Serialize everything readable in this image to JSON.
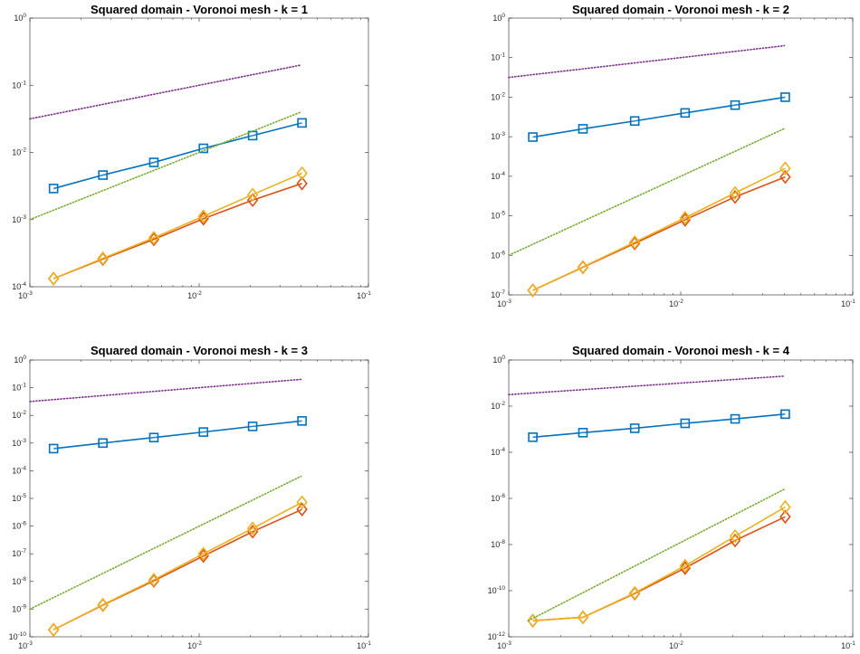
{
  "chart_data": [
    {
      "type": "line",
      "title": "Squared domain - Voronoi mesh - k = 1",
      "xscale": "log",
      "yscale": "log",
      "xlim": [
        0.001,
        0.1
      ],
      "ylim": [
        0.0001,
        1
      ],
      "xticks": [
        {
          "base": "10",
          "exp": "-3",
          "value": 0.001
        },
        {
          "base": "10",
          "exp": "-2",
          "value": 0.01
        },
        {
          "base": "10",
          "exp": "-1",
          "value": 0.1
        }
      ],
      "yticks": [
        {
          "base": "10",
          "exp": "-4",
          "value": 0.0001
        },
        {
          "base": "10",
          "exp": "-3",
          "value": 0.001
        },
        {
          "base": "10",
          "exp": "-2",
          "value": 0.01
        },
        {
          "base": "10",
          "exp": "-1",
          "value": 0.1
        },
        {
          "base": "10",
          "exp": "0",
          "value": 1
        }
      ],
      "grid": false,
      "series": [
        {
          "color": "#0072BD",
          "marker": "square",
          "style": "solid",
          "x": [
            0.00138,
            0.0027,
            0.0054,
            0.0106,
            0.0207,
            0.0405
          ],
          "y": [
            0.0029,
            0.0046,
            0.0071,
            0.0115,
            0.0178,
            0.0275
          ]
        },
        {
          "color": "#D95319",
          "marker": "diamond",
          "style": "solid",
          "x": [
            0.00138,
            0.0027,
            0.0054,
            0.0106,
            0.0207,
            0.0405
          ],
          "y": [
            0.000132,
            0.000258,
            0.000507,
            0.00103,
            0.00195,
            0.00345
          ]
        },
        {
          "color": "#EDB120",
          "marker": "diamond",
          "style": "solid",
          "x": [
            0.00138,
            0.0027,
            0.0054,
            0.0106,
            0.0207,
            0.0405
          ],
          "y": [
            0.000132,
            0.000265,
            0.000535,
            0.00112,
            0.00235,
            0.0049
          ]
        },
        {
          "color": "#7E2F8E",
          "marker": "none",
          "style": "dotted",
          "x": [
            0.001,
            0.04
          ],
          "y": [
            0.0316,
            0.2
          ]
        },
        {
          "color": "#77AC30",
          "marker": "none",
          "style": "dotted",
          "x": [
            0.001,
            0.04
          ],
          "y": [
            0.001,
            0.04
          ]
        }
      ]
    },
    {
      "type": "line",
      "title": "Squared domain - Voronoi mesh - k = 2",
      "xscale": "log",
      "yscale": "log",
      "xlim": [
        0.001,
        0.1
      ],
      "ylim": [
        1e-07,
        1
      ],
      "xticks": [
        {
          "base": "10",
          "exp": "-3",
          "value": 0.001
        },
        {
          "base": "10",
          "exp": "-2",
          "value": 0.01
        },
        {
          "base": "10",
          "exp": "-1",
          "value": 0.1
        }
      ],
      "yticks": [
        {
          "base": "10",
          "exp": "-7",
          "value": 1e-07
        },
        {
          "base": "10",
          "exp": "-6",
          "value": 1e-06
        },
        {
          "base": "10",
          "exp": "-5",
          "value": 1e-05
        },
        {
          "base": "10",
          "exp": "-4",
          "value": 0.0001
        },
        {
          "base": "10",
          "exp": "-3",
          "value": 0.001
        },
        {
          "base": "10",
          "exp": "-2",
          "value": 0.01
        },
        {
          "base": "10",
          "exp": "-1",
          "value": 0.1
        },
        {
          "base": "10",
          "exp": "0",
          "value": 1
        }
      ],
      "grid": false,
      "series": [
        {
          "color": "#0072BD",
          "marker": "square",
          "style": "solid",
          "x": [
            0.00138,
            0.0027,
            0.0054,
            0.0106,
            0.0207,
            0.0405
          ],
          "y": [
            0.00098,
            0.00158,
            0.0025,
            0.004,
            0.0063,
            0.01
          ]
        },
        {
          "color": "#D95319",
          "marker": "diamond",
          "style": "solid",
          "x": [
            0.00138,
            0.0027,
            0.0054,
            0.0106,
            0.0207,
            0.0405
          ],
          "y": [
            1.3e-07,
            5e-07,
            2e-06,
            7.9e-06,
            3e-05,
            9.6e-05
          ]
        },
        {
          "color": "#EDB120",
          "marker": "diamond",
          "style": "solid",
          "x": [
            0.00138,
            0.0027,
            0.0054,
            0.0106,
            0.0207,
            0.0405
          ],
          "y": [
            1.3e-07,
            5.1e-07,
            2.15e-06,
            8.9e-06,
            3.8e-05,
            0.000158
          ]
        },
        {
          "color": "#7E2F8E",
          "marker": "none",
          "style": "dotted",
          "x": [
            0.001,
            0.04
          ],
          "y": [
            0.0316,
            0.2
          ]
        },
        {
          "color": "#77AC30",
          "marker": "none",
          "style": "dotted",
          "x": [
            0.001,
            0.04
          ],
          "y": [
            1e-06,
            0.0016
          ]
        }
      ]
    },
    {
      "type": "line",
      "title": "Squared domain - Voronoi mesh - k = 3",
      "xscale": "log",
      "yscale": "log",
      "xlim": [
        0.001,
        0.1
      ],
      "ylim": [
        1e-10,
        1
      ],
      "xticks": [
        {
          "base": "10",
          "exp": "-3",
          "value": 0.001
        },
        {
          "base": "10",
          "exp": "-2",
          "value": 0.01
        },
        {
          "base": "10",
          "exp": "-1",
          "value": 0.1
        }
      ],
      "yticks": [
        {
          "base": "10",
          "exp": "-10",
          "value": 1e-10
        },
        {
          "base": "10",
          "exp": "-9",
          "value": 1e-09
        },
        {
          "base": "10",
          "exp": "-8",
          "value": 1e-08
        },
        {
          "base": "10",
          "exp": "-7",
          "value": 1e-07
        },
        {
          "base": "10",
          "exp": "-6",
          "value": 1e-06
        },
        {
          "base": "10",
          "exp": "-5",
          "value": 1e-05
        },
        {
          "base": "10",
          "exp": "-4",
          "value": 0.0001
        },
        {
          "base": "10",
          "exp": "-3",
          "value": 0.001
        },
        {
          "base": "10",
          "exp": "-2",
          "value": 0.01
        },
        {
          "base": "10",
          "exp": "-1",
          "value": 0.1
        },
        {
          "base": "10",
          "exp": "0",
          "value": 1
        }
      ],
      "grid": false,
      "series": [
        {
          "color": "#0072BD",
          "marker": "square",
          "style": "solid",
          "x": [
            0.00138,
            0.0027,
            0.0054,
            0.0106,
            0.0207,
            0.0405
          ],
          "y": [
            0.00063,
            0.001,
            0.00158,
            0.0025,
            0.004,
            0.0063
          ]
        },
        {
          "color": "#D95319",
          "marker": "diamond",
          "style": "solid",
          "x": [
            0.00138,
            0.0027,
            0.0054,
            0.0106,
            0.0207,
            0.0405
          ],
          "y": [
            1.8e-10,
            1.4e-09,
            1.05e-08,
            8.3e-08,
            6.3e-07,
            4e-06
          ]
        },
        {
          "color": "#EDB120",
          "marker": "diamond",
          "style": "solid",
          "x": [
            0.00138,
            0.0027,
            0.0054,
            0.0106,
            0.0207,
            0.0405
          ],
          "y": [
            1.8e-10,
            1.45e-09,
            1.15e-08,
            1e-07,
            8.3e-07,
            7.2e-06
          ]
        },
        {
          "color": "#7E2F8E",
          "marker": "none",
          "style": "dotted",
          "x": [
            0.001,
            0.04
          ],
          "y": [
            0.0316,
            0.2
          ]
        },
        {
          "color": "#77AC30",
          "marker": "none",
          "style": "dotted",
          "x": [
            0.001,
            0.04
          ],
          "y": [
            1e-09,
            6.3e-05
          ]
        }
      ]
    },
    {
      "type": "line",
      "title": "Squared domain - Voronoi mesh - k = 4",
      "xscale": "log",
      "yscale": "log",
      "xlim": [
        0.001,
        0.1
      ],
      "ylim": [
        1e-12,
        1
      ],
      "xticks": [
        {
          "base": "10",
          "exp": "-3",
          "value": 0.001
        },
        {
          "base": "10",
          "exp": "-2",
          "value": 0.01
        },
        {
          "base": "10",
          "exp": "-1",
          "value": 0.1
        }
      ],
      "yticks": [
        {
          "base": "10",
          "exp": "-12",
          "value": 1e-12
        },
        {
          "base": "10",
          "exp": "-10",
          "value": 1e-10
        },
        {
          "base": "10",
          "exp": "-8",
          "value": 1e-08
        },
        {
          "base": "10",
          "exp": "-6",
          "value": 1e-06
        },
        {
          "base": "10",
          "exp": "-4",
          "value": 0.0001
        },
        {
          "base": "10",
          "exp": "-2",
          "value": 0.01
        },
        {
          "base": "10",
          "exp": "0",
          "value": 1
        }
      ],
      "grid": false,
      "series": [
        {
          "color": "#0072BD",
          "marker": "square",
          "style": "solid",
          "x": [
            0.00138,
            0.0027,
            0.0054,
            0.0106,
            0.0207,
            0.0405
          ],
          "y": [
            0.00045,
            0.00071,
            0.0011,
            0.0018,
            0.0028,
            0.0045
          ]
        },
        {
          "color": "#D95319",
          "marker": "diamond",
          "style": "solid",
          "x": [
            0.00138,
            0.0027,
            0.0054,
            0.0106,
            0.0207,
            0.0405
          ],
          "y": [
            5e-12,
            7e-12,
            7.5e-11,
            9.5e-10,
            1.5e-08,
            1.6e-07
          ]
        },
        {
          "color": "#EDB120",
          "marker": "diamond",
          "style": "solid",
          "x": [
            0.00138,
            0.0027,
            0.0054,
            0.0106,
            0.0207,
            0.0405
          ],
          "y": [
            5e-12,
            7e-12,
            8e-11,
            1.2e-09,
            2.3e-08,
            4.2e-07
          ]
        },
        {
          "color": "#7E2F8E",
          "marker": "none",
          "style": "dotted",
          "x": [
            0.001,
            0.04
          ],
          "y": [
            0.0316,
            0.2
          ]
        },
        {
          "color": "#77AC30",
          "marker": "none",
          "style": "dotted",
          "x": [
            0.0013,
            0.04
          ],
          "y": [
            5e-12,
            2.5e-06
          ]
        }
      ]
    }
  ]
}
